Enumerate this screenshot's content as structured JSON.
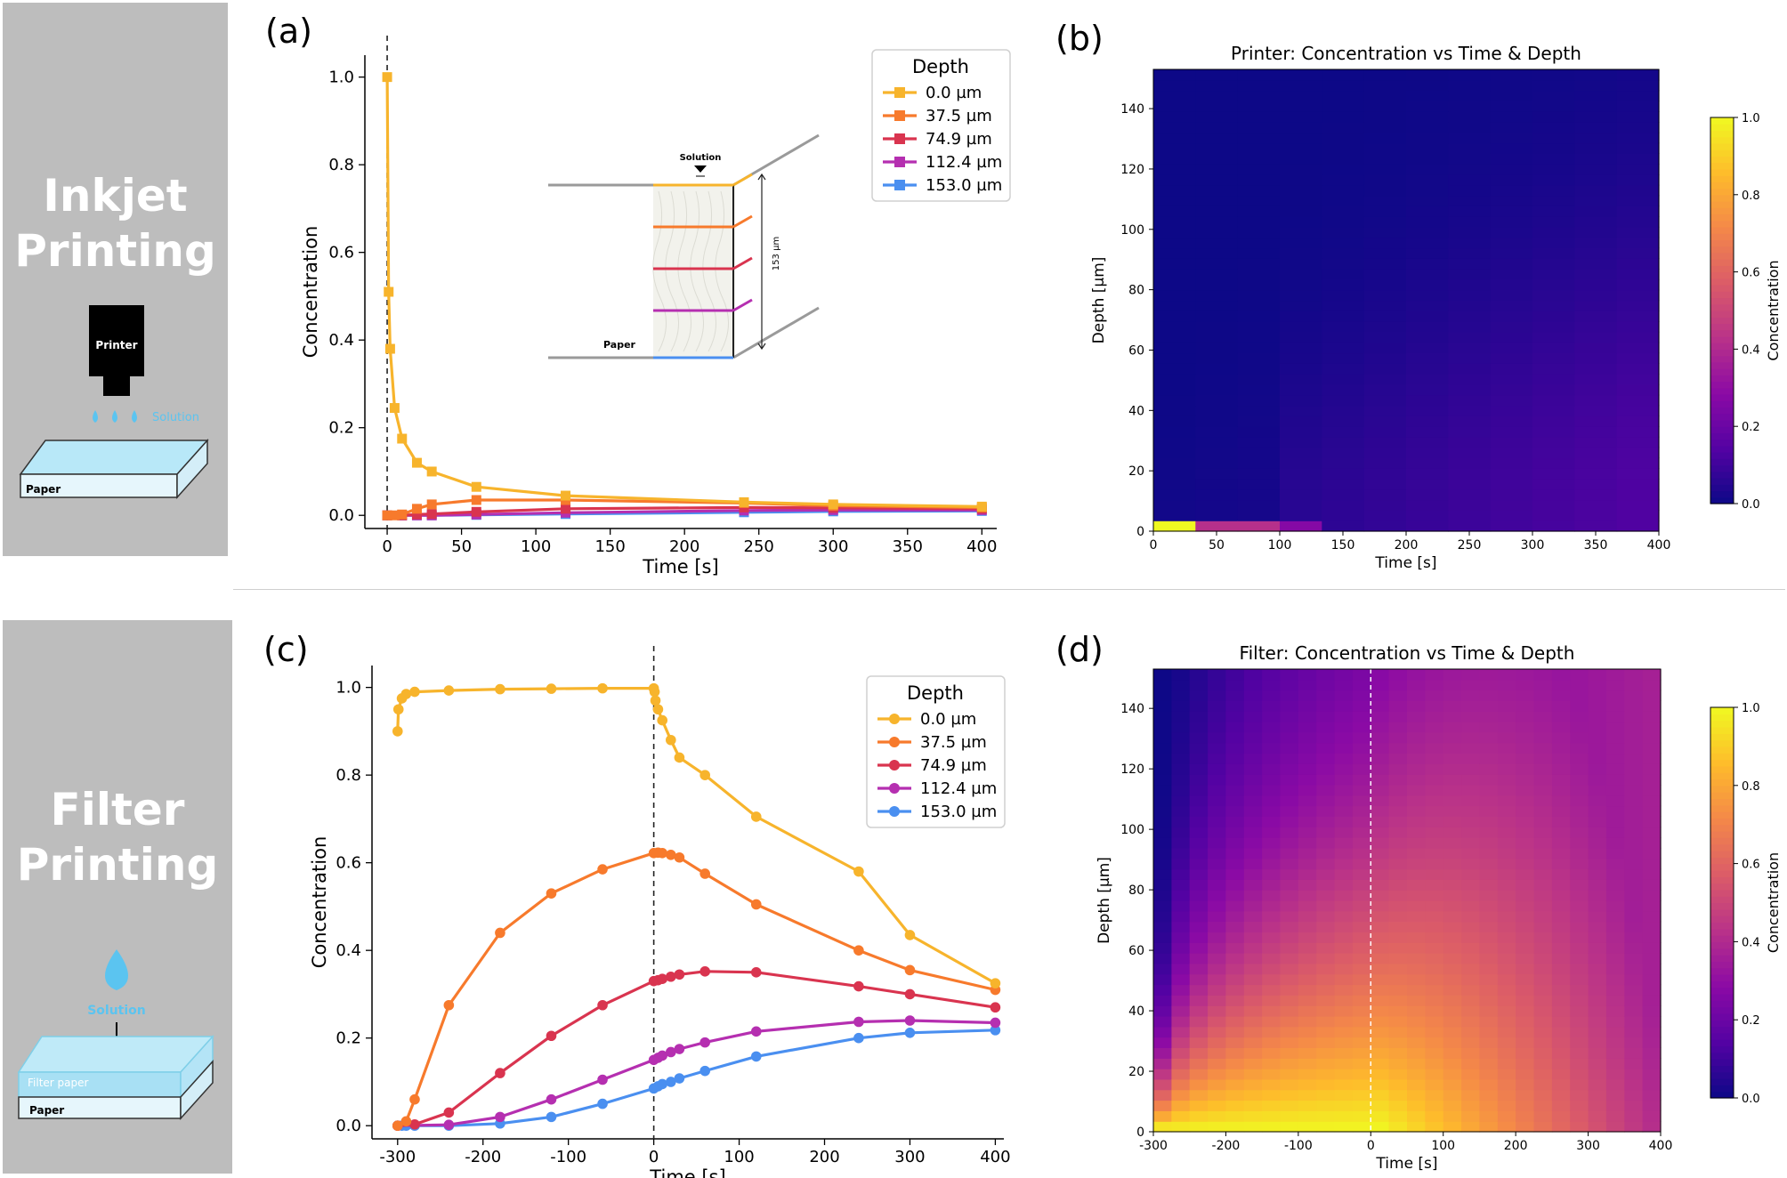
{
  "side": {
    "top_title": [
      "Inkjet",
      "Printing"
    ],
    "top_printer_label": "Printer",
    "top_solution_label": "Solution",
    "top_paper_label": "Paper",
    "bottom_title": [
      "Filter",
      "Printing"
    ],
    "bottom_solution_label": "Solution",
    "bottom_filter_label": "Filter paper",
    "bottom_paper_label": "Paper"
  },
  "colors": {
    "series": [
      "#f7b42c",
      "#f77a2c",
      "#d9344f",
      "#b52fb0",
      "#4a8ff0"
    ],
    "sidebar": "#bdbdbd",
    "solution": "#5bc4f0"
  },
  "chart_data": [
    {
      "id": "a",
      "panel_label": "(a)",
      "type": "line",
      "marker": "square",
      "xlabel": "Time [s]",
      "ylabel": "Concentration",
      "xlim": [
        -15,
        410
      ],
      "ylim": [
        -0.03,
        1.05
      ],
      "xticks": [
        0,
        50,
        100,
        150,
        200,
        250,
        300,
        350,
        400
      ],
      "yticks": [
        0.0,
        0.2,
        0.4,
        0.6,
        0.8,
        1.0
      ],
      "vline_x": 0,
      "legend": {
        "title": "Depth",
        "position": "top-right"
      },
      "series": [
        {
          "name": "0.0 µm",
          "points": [
            [
              0,
              1.0
            ],
            [
              1,
              0.51
            ],
            [
              2,
              0.38
            ],
            [
              5,
              0.245
            ],
            [
              10,
              0.175
            ],
            [
              20,
              0.12
            ],
            [
              30,
              0.1
            ],
            [
              60,
              0.065
            ],
            [
              120,
              0.045
            ],
            [
              240,
              0.03
            ],
            [
              300,
              0.025
            ],
            [
              400,
              0.02
            ]
          ]
        },
        {
          "name": "37.5 µm",
          "points": [
            [
              0,
              0.0
            ],
            [
              5,
              0.0
            ],
            [
              10,
              0.002
            ],
            [
              20,
              0.015
            ],
            [
              30,
              0.025
            ],
            [
              60,
              0.035
            ],
            [
              120,
              0.035
            ],
            [
              240,
              0.028
            ],
            [
              300,
              0.022
            ],
            [
              400,
              0.018
            ]
          ]
        },
        {
          "name": "74.9 µm",
          "points": [
            [
              0,
              0.0
            ],
            [
              10,
              0.0
            ],
            [
              20,
              0.002
            ],
            [
              30,
              0.003
            ],
            [
              60,
              0.008
            ],
            [
              120,
              0.015
            ],
            [
              240,
              0.018
            ],
            [
              300,
              0.017
            ],
            [
              400,
              0.015
            ]
          ]
        },
        {
          "name": "112.4 µm",
          "points": [
            [
              0,
              0.0
            ],
            [
              10,
              0.0
            ],
            [
              20,
              0.0
            ],
            [
              30,
              0.0
            ],
            [
              60,
              0.002
            ],
            [
              120,
              0.006
            ],
            [
              240,
              0.011
            ],
            [
              300,
              0.012
            ],
            [
              400,
              0.012
            ]
          ]
        },
        {
          "name": "153.0 µm",
          "points": [
            [
              0,
              0.0
            ],
            [
              10,
              0.0
            ],
            [
              20,
              0.0
            ],
            [
              30,
              0.0
            ],
            [
              60,
              0.001
            ],
            [
              120,
              0.003
            ],
            [
              240,
              0.007
            ],
            [
              300,
              0.009
            ],
            [
              400,
              0.01
            ]
          ]
        }
      ],
      "inset": {
        "solution_label": "Solution",
        "paper_label": "Paper",
        "thickness_label": "153 µm"
      }
    },
    {
      "id": "b",
      "panel_label": "(b)",
      "type": "heatmap",
      "title": "Printer: Concentration vs Time & Depth",
      "xlabel": "Time [s]",
      "ylabel": "Depth [µm]",
      "xlim": [
        0,
        400
      ],
      "ylim": [
        0,
        153
      ],
      "xticks": [
        0,
        50,
        100,
        150,
        200,
        250,
        300,
        350,
        400
      ],
      "yticks": [
        0,
        20,
        40,
        60,
        80,
        100,
        120,
        140
      ],
      "colorbar": {
        "label": "Concentration",
        "range": [
          0.0,
          1.0
        ],
        "ticks": [
          0.0,
          0.2,
          0.4,
          0.6,
          0.8,
          1.0
        ]
      },
      "description_cells": [
        {
          "t": [
            0,
            33
          ],
          "d": [
            0,
            3.5
          ],
          "value": 1.0
        },
        {
          "t": [
            33,
            66
          ],
          "d": [
            0,
            3.5
          ],
          "value": 0.5
        },
        {
          "t": [
            66,
            100
          ],
          "d": [
            0,
            3.5
          ],
          "value": 0.38
        },
        {
          "t": [
            100,
            133
          ],
          "d": [
            0,
            3.5
          ],
          "value": 0.25
        }
      ]
    },
    {
      "id": "c",
      "panel_label": "(c)",
      "type": "line",
      "marker": "circle",
      "xlabel": "Time [s]",
      "ylabel": "Concentration",
      "xlim": [
        -330,
        410
      ],
      "ylim": [
        -0.03,
        1.05
      ],
      "xticks": [
        -300,
        -200,
        -100,
        0,
        100,
        200,
        300,
        400
      ],
      "yticks": [
        0.0,
        0.2,
        0.4,
        0.6,
        0.8,
        1.0
      ],
      "vline_x": 0,
      "legend": {
        "title": "Depth",
        "position": "top-right"
      },
      "series": [
        {
          "name": "0.0 µm",
          "points": [
            [
              -300,
              0.9
            ],
            [
              -299,
              0.95
            ],
            [
              -295,
              0.975
            ],
            [
              -290,
              0.985
            ],
            [
              -280,
              0.99
            ],
            [
              -240,
              0.993
            ],
            [
              -180,
              0.996
            ],
            [
              -120,
              0.997
            ],
            [
              -60,
              0.998
            ],
            [
              0,
              0.998
            ],
            [
              1,
              0.99
            ],
            [
              2,
              0.97
            ],
            [
              5,
              0.95
            ],
            [
              10,
              0.925
            ],
            [
              20,
              0.88
            ],
            [
              30,
              0.84
            ],
            [
              60,
              0.8
            ],
            [
              120,
              0.705
            ],
            [
              240,
              0.58
            ],
            [
              300,
              0.435
            ],
            [
              400,
              0.325
            ]
          ]
        },
        {
          "name": "37.5 µm",
          "points": [
            [
              -300,
              0.0
            ],
            [
              -290,
              0.01
            ],
            [
              -280,
              0.06
            ],
            [
              -240,
              0.275
            ],
            [
              -180,
              0.44
            ],
            [
              -120,
              0.53
            ],
            [
              -60,
              0.585
            ],
            [
              0,
              0.622
            ],
            [
              5,
              0.623
            ],
            [
              10,
              0.622
            ],
            [
              20,
              0.618
            ],
            [
              30,
              0.612
            ],
            [
              60,
              0.575
            ],
            [
              120,
              0.505
            ],
            [
              240,
              0.4
            ],
            [
              300,
              0.355
            ],
            [
              400,
              0.31
            ]
          ]
        },
        {
          "name": "74.9 µm",
          "points": [
            [
              -300,
              0.0
            ],
            [
              -280,
              0.003
            ],
            [
              -240,
              0.03
            ],
            [
              -180,
              0.12
            ],
            [
              -120,
              0.205
            ],
            [
              -60,
              0.275
            ],
            [
              0,
              0.33
            ],
            [
              5,
              0.332
            ],
            [
              10,
              0.335
            ],
            [
              20,
              0.34
            ],
            [
              30,
              0.345
            ],
            [
              60,
              0.352
            ],
            [
              120,
              0.35
            ],
            [
              240,
              0.318
            ],
            [
              300,
              0.3
            ],
            [
              400,
              0.27
            ]
          ]
        },
        {
          "name": "112.4 µm",
          "points": [
            [
              -300,
              0.0
            ],
            [
              -240,
              0.002
            ],
            [
              -180,
              0.02
            ],
            [
              -120,
              0.06
            ],
            [
              -60,
              0.105
            ],
            [
              0,
              0.15
            ],
            [
              5,
              0.155
            ],
            [
              10,
              0.16
            ],
            [
              20,
              0.168
            ],
            [
              30,
              0.175
            ],
            [
              60,
              0.19
            ],
            [
              120,
              0.215
            ],
            [
              240,
              0.237
            ],
            [
              300,
              0.24
            ],
            [
              400,
              0.235
            ]
          ]
        },
        {
          "name": "153.0 µm",
          "points": [
            [
              -300,
              0.0
            ],
            [
              -295,
              0.0
            ],
            [
              -290,
              0.0
            ],
            [
              -280,
              0.0
            ],
            [
              -240,
              0.0
            ],
            [
              -180,
              0.005
            ],
            [
              -120,
              0.02
            ],
            [
              -60,
              0.05
            ],
            [
              0,
              0.085
            ],
            [
              5,
              0.09
            ],
            [
              10,
              0.095
            ],
            [
              20,
              0.1
            ],
            [
              30,
              0.108
            ],
            [
              60,
              0.125
            ],
            [
              120,
              0.158
            ],
            [
              240,
              0.2
            ],
            [
              300,
              0.212
            ],
            [
              400,
              0.218
            ]
          ]
        }
      ]
    },
    {
      "id": "d",
      "panel_label": "(d)",
      "type": "heatmap",
      "title": "Filter: Concentration vs Time & Depth",
      "xlabel": "Time [s]",
      "ylabel": "Depth [µm]",
      "xlim": [
        -300,
        400
      ],
      "ylim": [
        0,
        153
      ],
      "xticks": [
        -300,
        -200,
        -100,
        0,
        100,
        200,
        300,
        400
      ],
      "yticks": [
        0,
        20,
        40,
        60,
        80,
        100,
        120,
        140
      ],
      "vline_x": 0,
      "colorbar": {
        "label": "Concentration",
        "range": [
          0.0,
          1.0
        ],
        "ticks": [
          0.0,
          0.2,
          0.4,
          0.6,
          0.8,
          1.0
        ]
      }
    }
  ]
}
